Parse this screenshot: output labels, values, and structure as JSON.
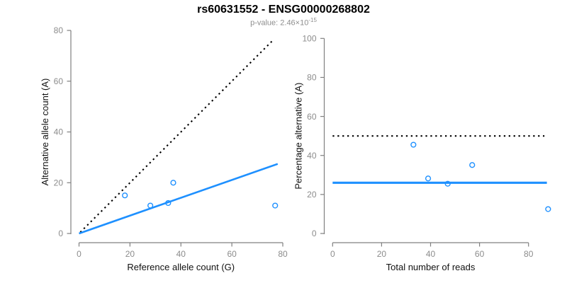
{
  "header": {
    "title": "rs60631552 - ENSG00000268802",
    "subtitle_prefix": "p-value: 2.46×10",
    "subtitle_exponent": "-15"
  },
  "colors": {
    "accent_blue": "#1e90ff",
    "line_black": "#000000",
    "axis_gray": "#808080",
    "tick_label_gray": "#8c8c8c",
    "label_black": "#111111"
  },
  "chart_data": [
    {
      "name": "allele-counts-scatter",
      "type": "scatter",
      "xlabel": "Reference allele count (G)",
      "ylabel": "Alternative allele count (A)",
      "xlim": [
        0,
        80
      ],
      "ylim": [
        0,
        80
      ],
      "xticks": [
        0,
        20,
        40,
        60,
        80
      ],
      "yticks": [
        0,
        20,
        40,
        60,
        80
      ],
      "grid": false,
      "point_color": "#1e90ff",
      "points": [
        {
          "x": 18,
          "y": 15
        },
        {
          "x": 28,
          "y": 11
        },
        {
          "x": 35,
          "y": 12
        },
        {
          "x": 37,
          "y": 20
        },
        {
          "x": 77,
          "y": 11
        }
      ],
      "lines": [
        {
          "name": "identity-line",
          "style": "dotted",
          "color": "#000000",
          "from": [
            0.5,
            0.5
          ],
          "to": [
            76.5,
            76.5
          ]
        },
        {
          "name": "mean-ratio-line",
          "style": "solid",
          "color": "#1e90ff",
          "from": [
            0,
            0
          ],
          "to": [
            78,
            27.4
          ]
        }
      ]
    },
    {
      "name": "percentage-alternative-scatter",
      "type": "scatter",
      "xlabel": "Total number of reads",
      "ylabel": "Percentage alternative (A)",
      "xlim": [
        0,
        80
      ],
      "ylim": [
        0,
        100
      ],
      "xticks": [
        0,
        20,
        40,
        60,
        80
      ],
      "yticks": [
        0,
        20,
        40,
        60,
        80,
        100
      ],
      "grid": false,
      "point_color": "#1e90ff",
      "points": [
        {
          "x": 33,
          "y": 45.5
        },
        {
          "x": 39,
          "y": 28.2
        },
        {
          "x": 47,
          "y": 25.5
        },
        {
          "x": 57,
          "y": 35.1
        },
        {
          "x": 88,
          "y": 12.5
        }
      ],
      "lines": [
        {
          "name": "expected-50pct-line",
          "style": "dotted",
          "color": "#000000",
          "from": [
            0,
            50
          ],
          "to": [
            86.5,
            50
          ]
        },
        {
          "name": "mean-percentage-line",
          "style": "solid",
          "color": "#1e90ff",
          "from": [
            0,
            26
          ],
          "to": [
            87.5,
            26
          ]
        }
      ]
    }
  ]
}
